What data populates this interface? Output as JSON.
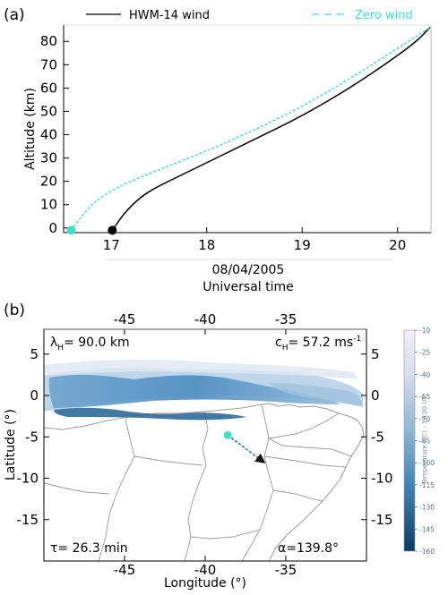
{
  "chart_data": [
    {
      "panel_label": "(a)",
      "type": "line",
      "xlabel_line1": "08/04/2005",
      "xlabel_line2": "Universal time",
      "ylabel": "Altitude (km)",
      "xlim": [
        16.5,
        20.35
      ],
      "ylim": [
        -2,
        87
      ],
      "xticks": [
        "17",
        "18",
        "19",
        "20"
      ],
      "xtick_values": [
        17,
        18,
        19,
        20
      ],
      "yticks": [
        "0",
        "10",
        "20",
        "30",
        "40",
        "50",
        "60",
        "70",
        "80"
      ],
      "ytick_values": [
        0,
        10,
        20,
        30,
        40,
        50,
        60,
        70,
        80
      ],
      "series": [
        {
          "name": "HWM-14 wind",
          "style": "solid",
          "color": "#000000",
          "x": [
            17.01,
            17.06,
            17.15,
            17.3,
            17.45,
            17.7,
            18.0,
            18.5,
            19.0,
            19.5,
            19.9,
            20.2,
            20.34
          ],
          "y": [
            -1,
            2,
            7,
            13,
            17,
            22,
            28,
            38,
            48,
            60,
            71,
            80,
            86
          ]
        },
        {
          "name": "Zero wind",
          "style": "dashed",
          "color": "#40e0c8",
          "x": [
            16.58,
            16.65,
            16.75,
            16.85,
            17.0,
            17.2,
            17.5,
            18.0,
            18.5,
            19.0,
            19.5,
            20.0,
            20.34
          ],
          "y": [
            -1,
            3,
            8,
            12,
            16,
            20,
            25,
            33,
            42,
            52,
            64,
            77,
            86
          ]
        }
      ],
      "start_points": [
        {
          "series": "HWM-14 wind",
          "x": 17.01,
          "y": -1,
          "color": "#000000"
        },
        {
          "series": "Zero wind",
          "x": 16.58,
          "y": -1,
          "color": "#40e0c8"
        }
      ]
    },
    {
      "panel_label": "(b)",
      "type": "heatmap",
      "xlabel": "Longitude (°)",
      "ylabel": "Latitude (°)",
      "xlim": [
        -50,
        -30
      ],
      "ylim": [
        -20,
        8
      ],
      "xticks": [
        "-45",
        "-40",
        "-35"
      ],
      "xtick_values": [
        -45,
        -40,
        -35
      ],
      "yticks": [
        "5",
        "0",
        "-5",
        "-10",
        "-15"
      ],
      "ytick_values": [
        5,
        0,
        -5,
        -10,
        -15
      ],
      "annotations": {
        "lambda_label": "λ",
        "lambda_sub": "H",
        "lambda_value": "= 90.0 km",
        "c_label": "c",
        "c_sub": "H",
        "c_value": "= 57.2 ms",
        "c_unit_sup": "-1",
        "tau_text": "τ= 26.3 min",
        "alpha_text": "α=139.8°"
      },
      "colorbar": {
        "label": "Temperature (°C) - 17:00 UT",
        "ticks": [
          "-10",
          "-25",
          "-40",
          "-55",
          "-70",
          "-85",
          "-100",
          "-115",
          "-130",
          "-145",
          "-160"
        ],
        "tick_values": [
          -10,
          -25,
          -40,
          -55,
          -70,
          -85,
          -100,
          -115,
          -130,
          -145,
          -160
        ],
        "color_top": "#f3eef7",
        "color_bottom": "#0d3d63"
      },
      "trajectory": {
        "start": {
          "lon": -38.6,
          "lat": -4.8
        },
        "end": {
          "lon": -36.4,
          "lat": -8.0
        },
        "start_color": "#40e0c8",
        "line_color": "#1c7f7f"
      }
    }
  ],
  "legend": {
    "hwm_label": "HWM-14 wind",
    "zero_label": "Zero wind"
  }
}
